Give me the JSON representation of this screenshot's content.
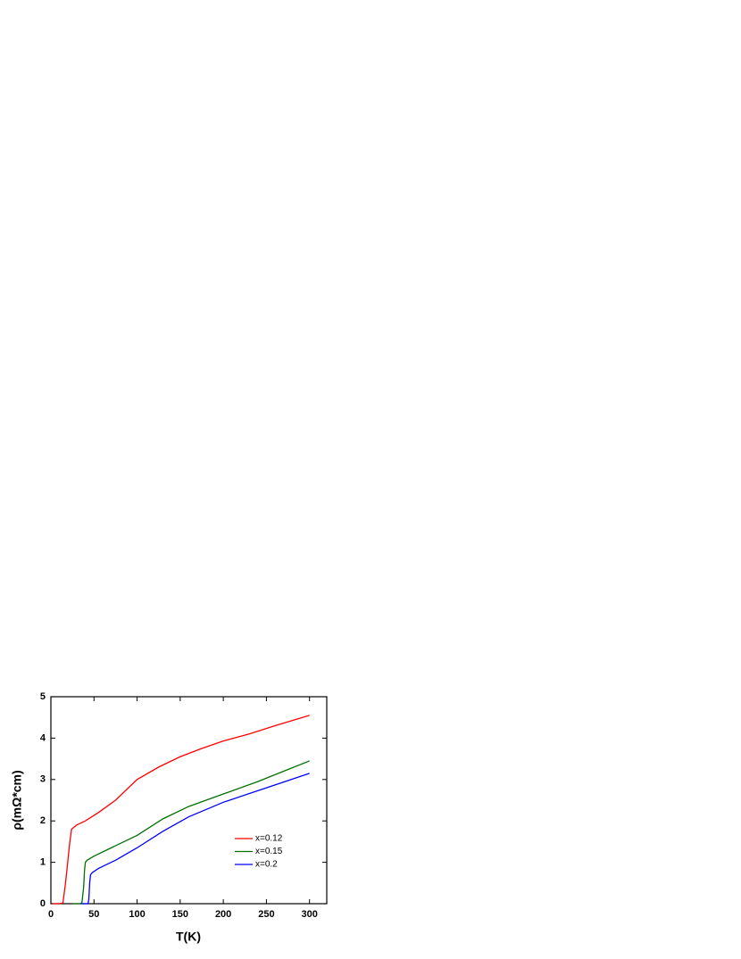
{
  "chart_data": {
    "type": "line",
    "x_label": "T(K)",
    "y_label": "ρ(mΩ*cm)",
    "xlim": [
      0,
      320
    ],
    "ylim": [
      0,
      5
    ],
    "xticks": [
      0,
      50,
      100,
      150,
      200,
      250,
      300
    ],
    "yticks": [
      0,
      1,
      2,
      3,
      4,
      5
    ],
    "legend": "lower right",
    "series": [
      {
        "name": "x=0.12",
        "color": "#ff0000",
        "x": [
          2,
          10,
          14,
          17,
          20,
          22,
          24,
          27,
          30,
          40,
          55,
          75,
          100,
          125,
          150,
          175,
          200,
          230,
          260,
          300
        ],
        "values": [
          0,
          0,
          0.02,
          0.5,
          1.1,
          1.5,
          1.8,
          1.85,
          1.9,
          2.0,
          2.2,
          2.5,
          3.0,
          3.3,
          3.55,
          3.75,
          3.93,
          4.1,
          4.3,
          4.55
        ]
      },
      {
        "name": "x=0.15",
        "color": "#007000",
        "x": [
          25,
          34,
          36,
          38,
          39,
          40,
          42,
          50,
          70,
          100,
          130,
          160,
          200,
          240,
          270,
          300
        ],
        "values": [
          0,
          0,
          0.02,
          0.4,
          0.8,
          1.0,
          1.05,
          1.15,
          1.35,
          1.65,
          2.05,
          2.35,
          2.65,
          2.95,
          3.2,
          3.45
        ]
      },
      {
        "name": "x=0.2",
        "color": "#0000ff",
        "x": [
          35,
          43,
          44,
          45,
          46,
          48,
          55,
          75,
          100,
          130,
          160,
          200,
          250,
          300
        ],
        "values": [
          0,
          0,
          0.1,
          0.5,
          0.7,
          0.75,
          0.85,
          1.05,
          1.35,
          1.75,
          2.1,
          2.45,
          2.8,
          3.15
        ]
      }
    ]
  }
}
